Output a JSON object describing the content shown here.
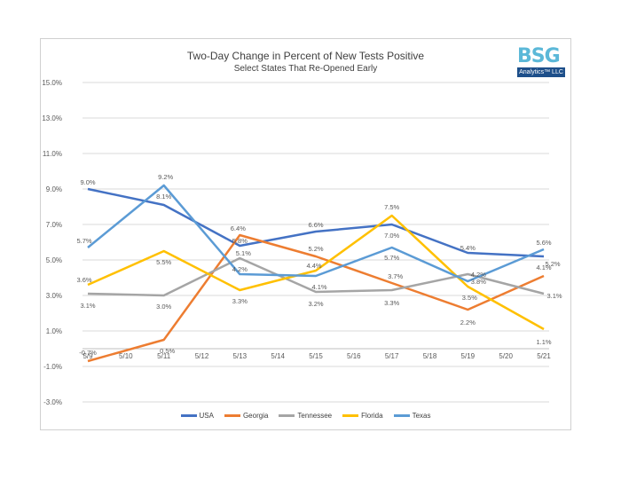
{
  "colors": {
    "USA": "#4472c4",
    "Georgia": "#ed7d31",
    "Tennessee": "#a5a5a5",
    "Florida": "#ffc000",
    "Texas": "#5b9bd5",
    "grid": "#d9d9d9",
    "text": "#595959"
  },
  "logo": {
    "letters": "BSG",
    "tagline": "Analytics™ LLC"
  },
  "chart_data": {
    "type": "line",
    "title": "Two-Day Change in Percent of New Tests Positive",
    "subtitle": "Select States That Re-Opened Early",
    "xlabel": "",
    "ylabel": "",
    "categories": [
      "5/9",
      "5/10",
      "5/11",
      "5/12",
      "5/13",
      "5/14",
      "5/15",
      "5/16",
      "5/17",
      "5/18",
      "5/19",
      "5/20",
      "5/21"
    ],
    "ylim": [
      -3,
      15
    ],
    "yticks": [
      -3,
      -1,
      1,
      3,
      5,
      7,
      9,
      11,
      13,
      15
    ],
    "ytick_labels": [
      "-3.0%",
      "-1.0%",
      "1.0%",
      "3.0%",
      "5.0%",
      "7.0%",
      "9.0%",
      "11.0%",
      "13.0%",
      "15.0%"
    ],
    "grid": true,
    "legend_position": "bottom",
    "series": [
      {
        "name": "USA",
        "x": [
          "5/9",
          "5/11",
          "5/13",
          "5/15",
          "5/17",
          "5/19",
          "5/21"
        ],
        "values": [
          9.0,
          8.1,
          5.8,
          6.6,
          7.0,
          5.4,
          5.2
        ],
        "labels": [
          "9.0%",
          "8.1%",
          "5.8%",
          "6.6%",
          "7.0%",
          "5.4%",
          "5.2%"
        ]
      },
      {
        "name": "Georgia",
        "x": [
          "5/9",
          "5/11",
          "5/13",
          "5/15",
          "5/17",
          "5/19",
          "5/21"
        ],
        "values": [
          -0.7,
          0.5,
          6.4,
          5.2,
          3.7,
          2.2,
          4.1
        ],
        "labels": [
          "-0.7%",
          "0.5%",
          "6.4%",
          "5.2%",
          "3.7%",
          "2.2%",
          "4.1%"
        ]
      },
      {
        "name": "Tennessee",
        "x": [
          "5/9",
          "5/11",
          "5/13",
          "5/15",
          "5/17",
          "5/19",
          "5/21"
        ],
        "values": [
          3.1,
          3.0,
          5.1,
          3.2,
          3.3,
          4.2,
          3.1
        ],
        "labels": [
          "3.1%",
          "3.0%",
          "5.1%",
          "3.2%",
          "3.3%",
          "4.2%",
          "3.1%"
        ]
      },
      {
        "name": "Florida",
        "x": [
          "5/9",
          "5/11",
          "5/13",
          "5/15",
          "5/17",
          "5/19",
          "5/21"
        ],
        "values": [
          3.6,
          5.5,
          3.3,
          4.4,
          7.5,
          3.5,
          1.1
        ],
        "labels": [
          "3.6%",
          "5.5%",
          "3.3%",
          "4.4%",
          "7.5%",
          "3.5%",
          "1.1%"
        ]
      },
      {
        "name": "Texas",
        "x": [
          "5/9",
          "5/11",
          "5/13",
          "5/15",
          "5/17",
          "5/19",
          "5/21"
        ],
        "values": [
          5.7,
          9.2,
          4.2,
          4.1,
          5.7,
          3.8,
          5.6
        ],
        "labels": [
          "5.7%",
          "9.2%",
          "4.2%",
          "4.1%",
          "5.7%",
          "3.8%",
          "5.6%"
        ]
      }
    ]
  }
}
